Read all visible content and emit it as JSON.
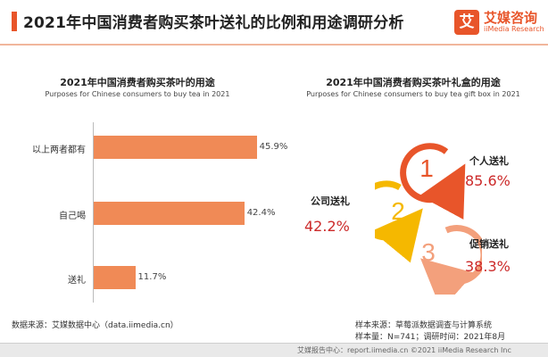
{
  "header": {
    "title": "2021年中国消费者购买茶叶送礼的比例和用途调研分析",
    "brand_logo": "艾",
    "brand_name": "艾媒咨询",
    "brand_sub": "iiMedia Research",
    "accent_color": "#e8552a"
  },
  "chart_data": [
    {
      "type": "bar",
      "orientation": "horizontal",
      "title": "2021年中国消费者购买茶叶的用途",
      "subtitle": "Purposes for Chinese consumers to buy tea in 2021",
      "categories": [
        "以上两者都有",
        "自己喝",
        "送礼"
      ],
      "values": [
        45.9,
        42.4,
        11.7
      ],
      "value_labels": [
        "45.9%",
        "42.4%",
        "11.7%"
      ],
      "unit": "%",
      "bar_color": "#f08a56",
      "xlim": [
        0,
        50
      ]
    },
    {
      "type": "table",
      "title": "2021年中国消费者购买茶叶礼盒的用途",
      "subtitle": "Purposes for Chinese consumers to buy tea gift box in 2021",
      "items": [
        {
          "rank": "1",
          "label": "个人送礼",
          "value": 85.6,
          "value_label": "85.6%"
        },
        {
          "rank": "2",
          "label": "公司送礼",
          "value": 42.2,
          "value_label": "42.2%"
        },
        {
          "rank": "3",
          "label": "促销送礼",
          "value": 38.3,
          "value_label": "38.3%"
        }
      ],
      "colors": [
        "#e8552a",
        "#f5b800",
        "#f3a07c"
      ],
      "value_color": "#cc2a2a"
    }
  ],
  "source": "数据来源：艾媒数据中心（data.iimedia.cn）",
  "sample_source": "样本来源：草莓派数据调查与计算系统",
  "sample_size": "样本量：N=741；调研时间：2021年8月",
  "footer": "艾媒报告中心：report.iimedia.cn ©2021 iiMedia Research Inc"
}
